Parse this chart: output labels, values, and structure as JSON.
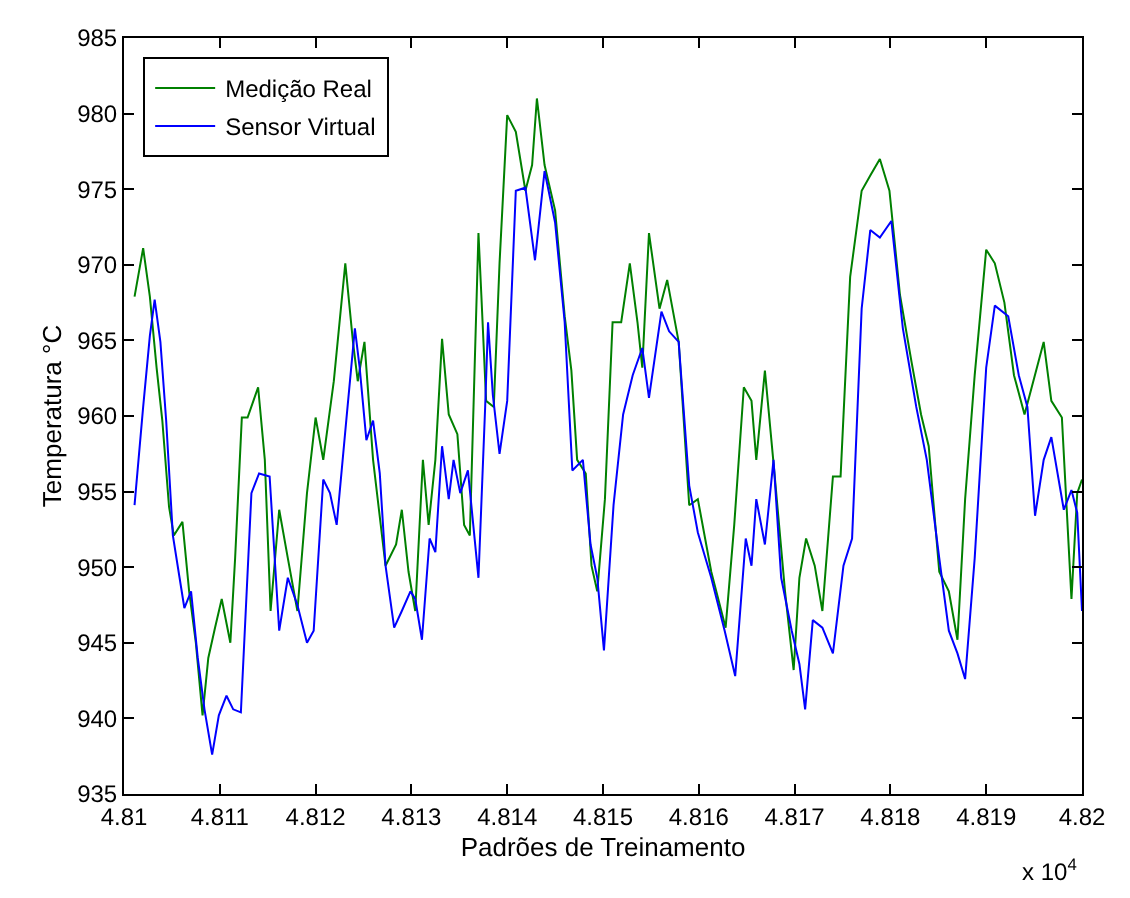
{
  "chart_data": {
    "type": "line",
    "xlabel": "Padrões de Treinamento",
    "ylabel": "Temperatura °C",
    "annotations": [
      "x 10$^{4}$"
    ],
    "xlim": [
      4.81,
      4.82
    ],
    "xticks": [
      4.81,
      4.811,
      4.812,
      4.813,
      4.814,
      4.815,
      4.816,
      4.817,
      4.818,
      4.819,
      4.82
    ],
    "ylim": [
      935,
      985
    ],
    "yticks": [
      935,
      940,
      945,
      950,
      955,
      960,
      965,
      970,
      975,
      980,
      985
    ],
    "legend": "top left",
    "marker": "none",
    "line_style": "solid",
    "series": [
      {
        "name": "Medição Real",
        "color": "#008000",
        "x": [
          4.81011,
          4.8102,
          4.81027,
          4.81034,
          4.8104,
          4.81047,
          4.81052,
          4.81061,
          4.81068,
          4.81075,
          4.81082,
          4.81088,
          4.81095,
          4.81102,
          4.81111,
          4.81116,
          4.81123,
          4.81129,
          4.8114,
          4.81147,
          4.81153,
          4.81162,
          4.81171,
          4.81181,
          4.81191,
          4.812,
          4.81208,
          4.81219,
          4.81231,
          4.81239,
          4.81244,
          4.81251,
          4.8126,
          4.81273,
          4.81284,
          4.8129,
          4.81297,
          4.81304,
          4.81312,
          4.81318,
          4.81325,
          4.81332,
          4.81339,
          4.81348,
          4.81355,
          4.81361,
          4.8137,
          4.81373,
          4.81378,
          4.81386,
          4.81392,
          4.814,
          4.81409,
          4.81419,
          4.81426,
          4.81431,
          4.81439,
          4.8145,
          4.8146,
          4.81467,
          4.81473,
          4.81482,
          4.81488,
          4.81494,
          4.81502,
          4.8151,
          4.81519,
          4.81528,
          4.81536,
          4.81541,
          4.81548,
          4.81559,
          4.81567,
          4.81579,
          4.8159,
          4.81599,
          4.81613,
          4.81628,
          4.81637,
          4.81647,
          4.81655,
          4.8166,
          4.81669,
          4.81679,
          4.8169,
          4.81699,
          4.81705,
          4.81712,
          4.81721,
          4.81729,
          4.8174,
          4.81748,
          4.81758,
          4.8177,
          4.81779,
          4.81789,
          4.81799,
          4.8181,
          4.81822,
          4.81832,
          4.8184,
          4.81851,
          4.81861,
          4.8187,
          4.81878,
          4.81888,
          4.819,
          4.81909,
          4.81919,
          4.81929,
          4.8194,
          4.8195,
          4.8196,
          4.81968,
          4.81979,
          4.81989,
          4.81995,
          4.82
        ],
        "values": [
          967.9,
          971.1,
          967.9,
          963.2,
          959.7,
          954,
          952.1,
          953,
          948.4,
          945,
          940.2,
          944,
          946,
          947.9,
          945,
          950.6,
          959.9,
          959.9,
          961.9,
          957.1,
          947.1,
          953.8,
          950.6,
          947.1,
          954.9,
          959.9,
          957.1,
          962.3,
          970.1,
          964.9,
          962.3,
          964.9,
          957.1,
          950.1,
          951.5,
          953.8,
          949.7,
          947.1,
          957.1,
          952.8,
          957.1,
          965.1,
          960.1,
          958.8,
          952.8,
          952.1,
          972.1,
          968,
          961,
          960.6,
          970.1,
          979.9,
          978.8,
          974.9,
          976.6,
          981,
          976.6,
          973.6,
          966.6,
          963,
          957.1,
          956.2,
          950.1,
          948.4,
          954.5,
          966.2,
          966.2,
          970.1,
          966.2,
          963.2,
          972.1,
          967.1,
          969,
          964.9,
          954.1,
          954.5,
          949.7,
          946,
          952.8,
          961.9,
          961,
          957.1,
          963,
          956.2,
          948.4,
          943.2,
          949.3,
          951.9,
          950.1,
          947.1,
          956,
          956,
          969.2,
          974.9,
          975.9,
          977,
          974.9,
          968,
          963.6,
          960.1,
          958,
          949.7,
          948.4,
          945.2,
          954.5,
          962.7,
          971,
          970.1,
          967.5,
          962.7,
          960.1,
          962.5,
          964.9,
          961,
          959.9,
          947.9,
          954.9,
          955.8
        ]
      },
      {
        "name": "Sensor Virtual",
        "color": "#0000ff",
        "x": [
          4.81011,
          4.8102,
          4.81027,
          4.81032,
          4.81038,
          4.81044,
          4.81051,
          4.81058,
          4.81063,
          4.8107,
          4.81077,
          4.81084,
          4.81092,
          4.81099,
          4.81107,
          4.81114,
          4.81122,
          4.81133,
          4.81141,
          4.81152,
          4.81162,
          4.81171,
          4.81181,
          4.81191,
          4.81198,
          4.81208,
          4.81215,
          4.81222,
          4.81232,
          4.81241,
          4.81246,
          4.81253,
          4.8126,
          4.81267,
          4.81273,
          4.81282,
          4.8129,
          4.81299,
          4.81304,
          4.81311,
          4.81319,
          4.81325,
          4.81332,
          4.81339,
          4.81344,
          4.81351,
          4.81359,
          4.8137,
          4.81377,
          4.8138,
          4.81385,
          4.81392,
          4.814,
          4.81409,
          4.81419,
          4.81429,
          4.81439,
          4.8145,
          4.8146,
          4.81468,
          4.81479,
          4.81487,
          4.81494,
          4.81501,
          4.81511,
          4.81521,
          4.81531,
          4.81541,
          4.81548,
          4.81561,
          4.81569,
          4.81579,
          4.8159,
          4.81599,
          4.81613,
          4.81627,
          4.81638,
          4.81649,
          4.81655,
          4.8166,
          4.81669,
          4.81678,
          4.81686,
          4.81697,
          4.81705,
          4.81711,
          4.81719,
          4.81729,
          4.8174,
          4.81751,
          4.8176,
          4.8177,
          4.81779,
          4.81789,
          4.81801,
          4.81813,
          4.81827,
          4.81838,
          4.81851,
          4.81861,
          4.8187,
          4.81878,
          4.81888,
          4.819,
          4.81909,
          4.81923,
          4.81934,
          4.81943,
          4.81951,
          4.8196,
          4.81968,
          4.81981,
          4.81989,
          4.81995,
          4.82
        ],
        "values": [
          954.1,
          960.6,
          965.3,
          967.7,
          964.9,
          959.7,
          952.1,
          949.3,
          947.3,
          948.4,
          944,
          940.6,
          937.6,
          940.2,
          941.5,
          940.6,
          940.4,
          954.9,
          956.2,
          956,
          945.8,
          949.3,
          947.5,
          945,
          945.8,
          955.8,
          954.9,
          952.8,
          959.7,
          965.8,
          963.2,
          958.4,
          959.7,
          956.2,
          950.1,
          946,
          947.1,
          948.4,
          947.9,
          945.2,
          951.9,
          951,
          958,
          954.5,
          957.1,
          954.9,
          956.4,
          949.3,
          960.6,
          966.2,
          961.4,
          957.5,
          961,
          974.9,
          975.1,
          970.3,
          976.2,
          972.8,
          966.2,
          956.4,
          957.1,
          951.5,
          949.3,
          944.5,
          954.1,
          960.1,
          962.7,
          964.5,
          961.2,
          966.9,
          965.6,
          964.9,
          955.4,
          952.3,
          949.3,
          945.8,
          942.8,
          951.9,
          950.1,
          954.5,
          951.5,
          957.1,
          949.3,
          945.8,
          943.6,
          940.6,
          946.5,
          946,
          944.3,
          950.1,
          951.9,
          967.1,
          972.3,
          971.8,
          972.9,
          965.8,
          960.6,
          957.1,
          950.6,
          945.8,
          944.3,
          942.6,
          950.6,
          963.2,
          967.3,
          966.6,
          962.7,
          960.6,
          953.4,
          957.1,
          958.6,
          953.8,
          955.1,
          953.6,
          947.1
        ]
      }
    ]
  }
}
